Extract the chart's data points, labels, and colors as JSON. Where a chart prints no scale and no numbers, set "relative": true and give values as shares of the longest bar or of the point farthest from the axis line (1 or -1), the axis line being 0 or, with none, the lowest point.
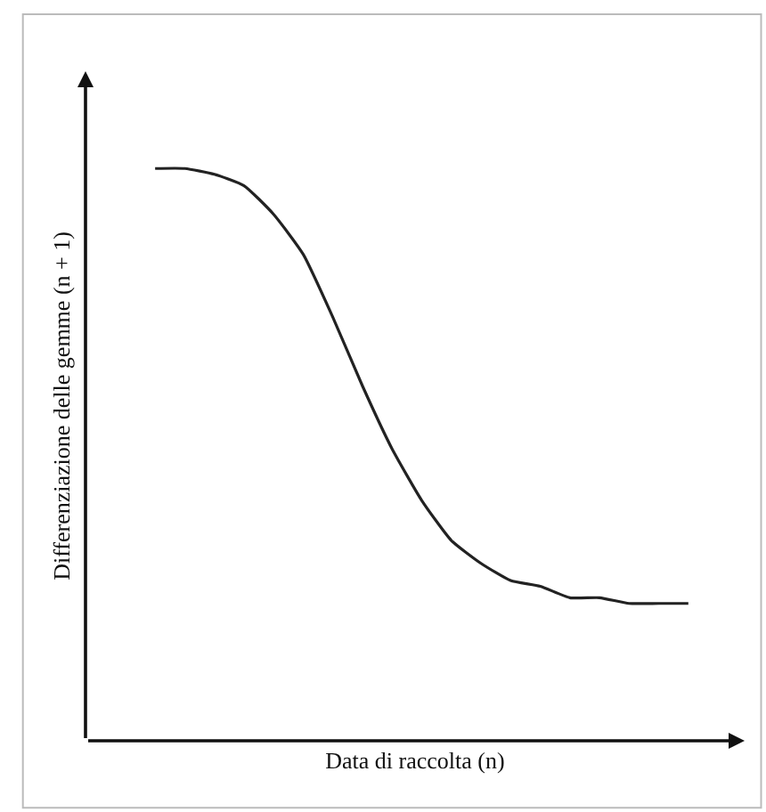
{
  "chart_data": {
    "type": "line",
    "relative": true,
    "xlabel": "Data di raccolta (n)",
    "ylabel": "Differenziazione delle gemme (n + 1)",
    "categories": [
      null,
      null,
      null,
      null,
      null,
      null,
      null,
      null,
      null,
      null,
      null,
      null,
      null,
      null,
      null,
      null,
      null,
      null,
      null
    ],
    "series": [
      {
        "color": "#222222",
        "values": [
          1.0,
          1.0,
          0.99,
          0.97,
          0.92,
          0.85,
          0.74,
          0.62,
          0.51,
          0.42,
          0.35,
          0.31,
          0.28,
          0.27,
          0.25,
          0.25,
          0.24,
          0.24,
          0.24
        ]
      }
    ],
    "grid": false,
    "legend": false,
    "marker": "none",
    "line_style": "solid"
  }
}
